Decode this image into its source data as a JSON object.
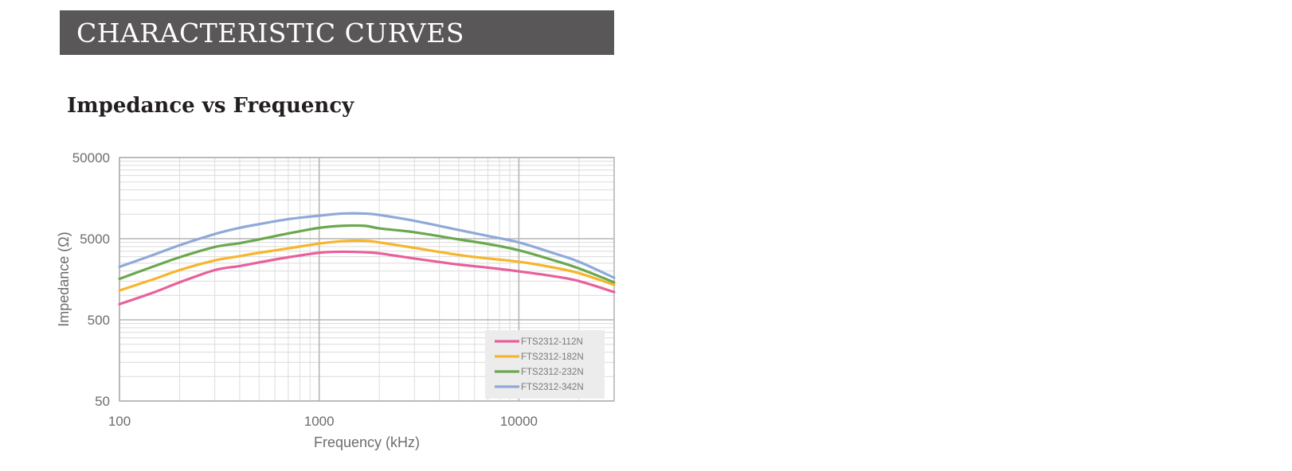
{
  "header": {
    "banner_title": "CHARACTERISTIC CURVES",
    "section_title": "Impedance vs Frequency",
    "banner_color": "#595757"
  },
  "chart_data": {
    "type": "line",
    "title": "Impedance vs Frequency",
    "xlabel": "Frequency (kHz)",
    "ylabel": "Impedance (Ω)",
    "x_scale": "log",
    "y_scale": "log",
    "xlim": [
      100,
      30000
    ],
    "ylim": [
      50,
      50000
    ],
    "x_ticks": [
      100,
      1000,
      10000
    ],
    "x_tick_labels": [
      "100",
      "1000",
      "10000"
    ],
    "y_ticks": [
      50,
      500,
      5000,
      50000
    ],
    "y_tick_labels": [
      "50",
      "500",
      "5000",
      "50000"
    ],
    "grid": true,
    "legend_position": "bottom-right",
    "series": [
      {
        "name": "FTS2312-112N",
        "color": "#e8609b",
        "x": [
          100,
          150,
          200,
          300,
          400,
          500,
          700,
          1000,
          1300,
          1700,
          2000,
          3000,
          5000,
          7000,
          10000,
          15000,
          20000,
          30000
        ],
        "y": [
          780,
          1100,
          1450,
          2050,
          2300,
          2550,
          2950,
          3350,
          3450,
          3400,
          3300,
          2850,
          2400,
          2200,
          1980,
          1720,
          1500,
          1100
        ]
      },
      {
        "name": "FTS2312-182N",
        "color": "#f7b52c",
        "x": [
          100,
          150,
          200,
          300,
          400,
          500,
          700,
          1000,
          1300,
          1700,
          2000,
          3000,
          5000,
          7000,
          10000,
          15000,
          20000,
          30000
        ],
        "y": [
          1150,
          1600,
          2050,
          2700,
          3050,
          3350,
          3800,
          4350,
          4650,
          4700,
          4500,
          3850,
          3150,
          2850,
          2600,
          2200,
          1880,
          1350
        ]
      },
      {
        "name": "FTS2312-232N",
        "color": "#6aa84f",
        "x": [
          100,
          150,
          200,
          300,
          400,
          500,
          700,
          1000,
          1300,
          1700,
          2000,
          3000,
          5000,
          7000,
          10000,
          15000,
          20000,
          30000
        ],
        "y": [
          1600,
          2300,
          2950,
          3950,
          4400,
          4900,
          5800,
          6800,
          7200,
          7200,
          6700,
          6000,
          4900,
          4300,
          3600,
          2700,
          2150,
          1450
        ]
      },
      {
        "name": "FTS2312-342N",
        "color": "#8fa9d8",
        "x": [
          100,
          150,
          200,
          300,
          400,
          500,
          700,
          1000,
          1300,
          1700,
          2000,
          3000,
          5000,
          7000,
          10000,
          15000,
          20000,
          30000
        ],
        "y": [
          2250,
          3200,
          4150,
          5700,
          6800,
          7550,
          8700,
          9600,
          10200,
          10200,
          9800,
          8300,
          6400,
          5400,
          4500,
          3300,
          2600,
          1650
        ]
      }
    ]
  }
}
